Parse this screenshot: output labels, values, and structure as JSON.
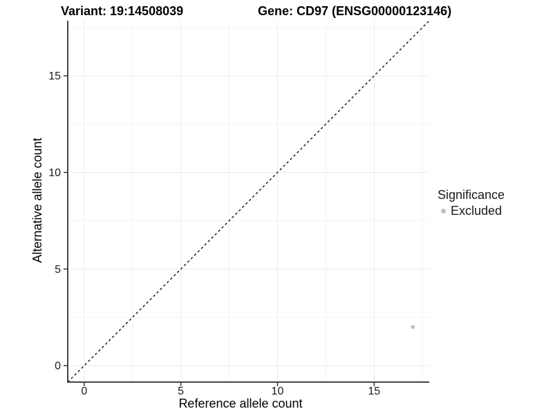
{
  "chart_data": {
    "type": "scatter",
    "titles": [
      "Variant: 19:14508039",
      "Gene: CD97 (ENSG00000123146)"
    ],
    "xlabel": "Reference allele count",
    "ylabel": "Alternative allele count",
    "xlim": [
      -0.85,
      17.85
    ],
    "ylim": [
      -0.85,
      17.85
    ],
    "xticks": [
      0,
      5,
      10,
      15
    ],
    "yticks": [
      0,
      5,
      10,
      15
    ],
    "xminor": [
      2.5,
      7.5,
      12.5,
      17.5
    ],
    "yminor": [
      2.5,
      7.5,
      12.5,
      17.5
    ],
    "grid": "major+minor",
    "legend_position": "right",
    "reference_line": {
      "slope": 1,
      "intercept": 0,
      "style": "dashed",
      "color": "#000000"
    },
    "series": [
      {
        "name": "Excluded",
        "color": "#bfbfbf",
        "points": [
          [
            17,
            2
          ]
        ]
      }
    ],
    "legend": {
      "title": "Significance",
      "items": [
        {
          "label": "Excluded",
          "color": "#bfbfbf",
          "marker": "circle"
        }
      ]
    },
    "colors": {
      "background": "#ffffff",
      "grid_major": "#ececec",
      "grid_minor": "#f3f3f3",
      "axis_line": "#444444",
      "tick_mark": "#333333",
      "tick_label": "#1a1a1a",
      "title_text": "#000000",
      "point": "#bfbfbf"
    }
  }
}
